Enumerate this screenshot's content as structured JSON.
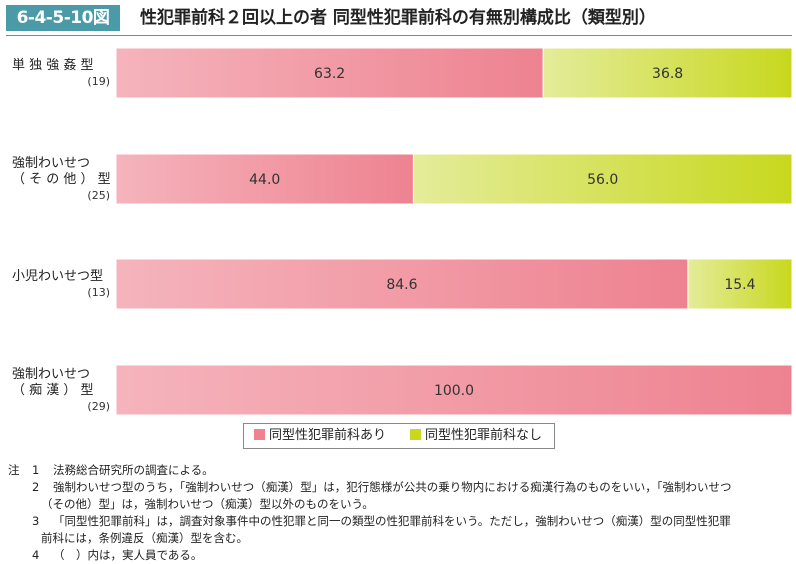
{
  "header": {
    "figure_number": "6-4-5-10図",
    "title": "性犯罪前科２回以上の者 同型性犯罪前科の有無別構成比（類型別）"
  },
  "chart_data": {
    "type": "bar",
    "orientation": "horizontal",
    "stacked": true,
    "percent": true,
    "xlim": [
      0,
      100
    ],
    "categories": [
      {
        "label_lines": [
          "単 独 強 姦 型"
        ],
        "n": "(19)"
      },
      {
        "label_lines": [
          "強制わいせつ",
          "（ そ の 他 ） 型"
        ],
        "n": "(25)"
      },
      {
        "label_lines": [
          "小児わいせつ型"
        ],
        "n": "(13)"
      },
      {
        "label_lines": [
          "強制わいせつ",
          "（ 痴 漢 ） 型"
        ],
        "n": "(29)"
      }
    ],
    "series": [
      {
        "name": "同型性犯罪前科あり",
        "color": "#ee8290",
        "color_light": "#f5b4bc",
        "values": [
          63.2,
          44.0,
          84.6,
          100.0
        ],
        "value_labels": [
          "63.2",
          "44.0",
          "84.6",
          "100.0"
        ]
      },
      {
        "name": "同型性犯罪前科なし",
        "color": "#c8d81e",
        "color_light": "#e4ec9a",
        "values": [
          36.8,
          56.0,
          15.4,
          0.0
        ],
        "value_labels": [
          "36.8",
          "56.0",
          "15.4",
          ""
        ]
      }
    ],
    "legend_position": "bottom-center",
    "grid": false
  },
  "notes": {
    "head": "注",
    "items": [
      {
        "num": "1",
        "lines": [
          "法務総合研究所の調査による。"
        ]
      },
      {
        "num": "2",
        "lines": [
          "強制わいせつ型のうち，「強制わいせつ（痴漢）型」は，犯行態様が公共の乗り物内における痴漢行為のものをいい，「強制わいせつ",
          "（その他）型」は，強制わいせつ（痴漢）型以外のものをいう。"
        ]
      },
      {
        "num": "3",
        "lines": [
          "「同型性犯罪前科」は，調査対象事件中の性犯罪と同一の類型の性犯罪前科をいう。ただし，強制わいせつ（痴漢）型の同型性犯罪",
          "前科には，条例違反（痴漢）型を含む。"
        ]
      },
      {
        "num": "4",
        "lines": [
          "（　）内は，実人員である。"
        ]
      }
    ]
  }
}
